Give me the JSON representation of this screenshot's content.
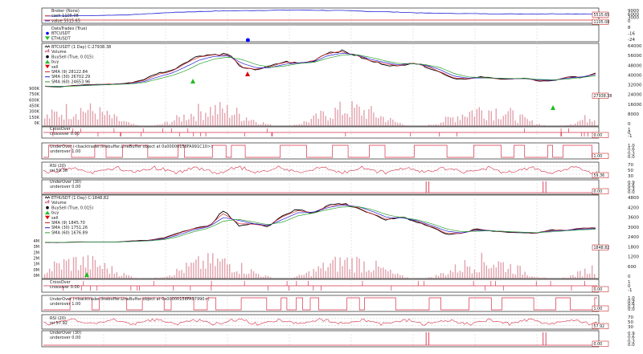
{
  "colors": {
    "price": "#000000",
    "sma_short": "#d62728",
    "sma_mid": "#1f1fd6",
    "sma_long": "#2ca02c",
    "indicator": "#d6304a",
    "volume": "#c9566a",
    "broker_value": "#1f1fd6",
    "broker_cash": "#d62728",
    "trade_dot": "#0000ff",
    "buy": "#22bb22",
    "sell": "#dd0000",
    "grid": "#cccccc"
  },
  "chart_data": [
    {
      "type": "line",
      "panel": "broker",
      "legend": [
        "Broker (None)",
        "cash 1105.08",
        "value 5515.65"
      ],
      "series": [
        {
          "name": "cash 1105.08",
          "values": [
            1105.08,
            1105.08
          ]
        },
        {
          "name": "value 5515.65",
          "values": [
            4300,
            4500,
            5000,
            6400,
            7200,
            7600,
            7800,
            7500,
            6800,
            6000,
            5700,
            5500,
            5600,
            5515.65
          ]
        }
      ],
      "ytick_labels": [
        "9000",
        "6000",
        "3000",
        "0"
      ],
      "ylim": [
        0,
        9000
      ],
      "value_tags": [
        "5515.65",
        "1105.08"
      ],
      "grid": true
    },
    {
      "type": "scatter",
      "panel": "trades",
      "legend": [
        "DataTrades (True)",
        "BTCUSDT",
        "ETHUSDT"
      ],
      "points": [
        {
          "x": 0.37,
          "y": 2
        }
      ],
      "ytick_labels": [
        "8",
        "-16",
        "-24"
      ],
      "grid": true
    },
    {
      "type": "line",
      "panel": "btc-price",
      "legend": [
        "BTCUSDT (1 Day) C:27938.38",
        "Volume",
        "BuySell (True, 0.015)",
        "buy",
        "sell",
        "SMA (9) 28122.84",
        "SMA (30) 26702.29",
        "SMA (60) 24653.96"
      ],
      "series": [
        {
          "name": "BTCUSDT (1 Day) C:27938.38",
          "values": [
            8200,
            7200,
            9400,
            10500,
            11200,
            11700,
            13500,
            18800,
            29000,
            33000,
            47000,
            57000,
            58000,
            59000,
            36000,
            34500,
            40000,
            47000,
            44000,
            48000,
            61500,
            63500,
            57000,
            48000,
            43000,
            39000,
            46000,
            39000,
            30000,
            20000,
            19800,
            23000,
            20000,
            19700,
            20500,
            16500,
            16800,
            23000,
            22000,
            27938.38
          ]
        },
        {
          "name": "SMA (9) 28122.84",
          "values": [
            8300,
            7800,
            9000,
            10300,
            11000,
            11600,
            13000,
            17500,
            27000,
            32000,
            45000,
            55000,
            57000,
            57500,
            38000,
            35000,
            39000,
            46000,
            44500,
            47500,
            60000,
            62000,
            57500,
            49000,
            44000,
            40000,
            45000,
            40000,
            31000,
            21000,
            20000,
            22500,
            20200,
            19800,
            20300,
            17000,
            17200,
            22500,
            22500,
            28122.84
          ]
        },
        {
          "name": "SMA (30) 26702.29",
          "values": [
            8400,
            8000,
            8600,
            9800,
            10700,
            11300,
            12400,
            15500,
            23000,
            29000,
            39000,
            50000,
            55000,
            56000,
            44000,
            37000,
            37500,
            43000,
            45000,
            46500,
            56000,
            60000,
            58000,
            51000,
            46000,
            42000,
            44000,
            41000,
            34000,
            24000,
            21000,
            21500,
            20700,
            20100,
            20200,
            18000,
            17600,
            21000,
            22800,
            26702.29
          ]
        },
        {
          "name": "SMA (60) 24653.96",
          "values": [
            8500,
            8200,
            8400,
            9300,
            10300,
            11000,
            11900,
            14000,
            19500,
            25000,
            33000,
            44000,
            51000,
            54000,
            50000,
            42000,
            38000,
            40000,
            44000,
            45500,
            52000,
            57000,
            58000,
            54000,
            48500,
            44000,
            43500,
            42000,
            37500,
            28000,
            23000,
            21500,
            21000,
            20500,
            20300,
            19000,
            18300,
            19500,
            22000,
            24653.96
          ]
        }
      ],
      "volume_ticks": [
        "900K",
        "750K",
        "600K",
        "450K",
        "300K",
        "150K",
        "0K"
      ],
      "ytick_labels": [
        "64000",
        "56000",
        "48000",
        "40000",
        "32000",
        "24000",
        "16000",
        "8000",
        "0"
      ],
      "ylim": [
        0,
        68000
      ],
      "last_value_tag": "27938.38",
      "grid": true
    },
    {
      "type": "line",
      "panel": "btc-crossover",
      "legend": [
        "CrossOver",
        "crossover 0.00"
      ],
      "ytick_labels": [
        "1",
        "0",
        "-1"
      ],
      "value_tag": "0.00"
    },
    {
      "type": "line",
      "panel": "btc-underover-1",
      "legend": [
        "UnderOver (<backtrader.linebuffer.LineBuffer object at 0x00000158FA991C10>)",
        "underover 1.00"
      ],
      "ytick_labels": [
        "1.0",
        "0.6",
        "0.3",
        "0.0"
      ],
      "value_tag": "1.00"
    },
    {
      "type": "line",
      "panel": "btc-rsi",
      "legend": [
        "RSI (20)",
        "rsi 59.36"
      ],
      "ytick_labels": [
        "70",
        "50",
        "30"
      ],
      "value_tag": "59.36"
    },
    {
      "type": "line",
      "panel": "btc-underover-30",
      "legend": [
        "UnderOver (30)",
        "underover 0.00"
      ],
      "ytick_labels": [
        "0.9",
        "0.6",
        "0.3",
        "0.0"
      ],
      "value_tag": "0.00"
    },
    {
      "type": "line",
      "panel": "eth-price",
      "legend": [
        "ETHUSDT (1 Day) C:1848.82",
        "Volume",
        "BuySell (True, 0.015)",
        "buy",
        "sell",
        "SMA (9) 1845.70",
        "SMA (30) 1751.26",
        "SMA (60) 1676.89"
      ],
      "series": [
        {
          "name": "ETHUSDT (1 Day) C:1848.82",
          "values": [
            180,
            170,
            230,
            240,
            220,
            240,
            380,
            420,
            700,
            1300,
            1800,
            2000,
            3800,
            2100,
            2300,
            2000,
            3300,
            3900,
            3500,
            4400,
            4600,
            4100,
            3300,
            2700,
            3100,
            2500,
            1900,
            1100,
            1200,
            1700,
            1500,
            1350,
            1300,
            1200,
            1600,
            1550,
            1800,
            1848.82
          ]
        },
        {
          "name": "SMA (9) 1845.70",
          "values": [
            190,
            180,
            215,
            235,
            225,
            240,
            360,
            410,
            660,
            1220,
            1750,
            2000,
            3500,
            2300,
            2250,
            2050,
            3150,
            3800,
            3550,
            4300,
            4500,
            4150,
            3400,
            2800,
            3050,
            2550,
            1950,
            1200,
            1200,
            1650,
            1500,
            1370,
            1310,
            1230,
            1550,
            1560,
            1760,
            1845.7
          ]
        },
        {
          "name": "SMA (30) 1751.26",
          "values": [
            200,
            190,
            205,
            225,
            228,
            238,
            320,
            390,
            580,
            1050,
            1600,
            1950,
            3000,
            2700,
            2300,
            2100,
            2800,
            3550,
            3600,
            4100,
            4400,
            4250,
            3700,
            3000,
            2950,
            2650,
            2100,
            1450,
            1250,
            1550,
            1520,
            1400,
            1330,
            1260,
            1450,
            1550,
            1680,
            1751.26
          ]
        },
        {
          "name": "SMA (60) 1676.89",
          "values": [
            210,
            200,
            200,
            215,
            225,
            235,
            290,
            360,
            500,
            850,
            1400,
            1800,
            2600,
            2800,
            2500,
            2200,
            2500,
            3200,
            3500,
            3900,
            4200,
            4250,
            3900,
            3300,
            3000,
            2750,
            2300,
            1700,
            1400,
            1450,
            1500,
            1420,
            1350,
            1290,
            1380,
            1500,
            1600,
            1676.89
          ]
        }
      ],
      "volume_ticks": [
        "4M",
        "3M",
        "2M",
        "2M",
        "1M",
        "0M",
        "0M"
      ],
      "ytick_labels": [
        "4800",
        "4200",
        "3600",
        "3000",
        "2400",
        "1800",
        "1200",
        "600",
        "0"
      ],
      "ylim": [
        0,
        5000
      ],
      "last_value_tag": "1848.82",
      "grid": true
    },
    {
      "type": "line",
      "panel": "eth-crossover",
      "legend": [
        "CrossOver",
        "crossover 0.00"
      ],
      "ytick_labels": [
        "1",
        "0",
        "-1"
      ],
      "value_tag": "0.00"
    },
    {
      "type": "line",
      "panel": "eth-underover-1",
      "legend": [
        "UnderOver (<backtrader.linebuffer.LineBuffer object at 0x00000158FA97990>)",
        "underover 1.00"
      ],
      "ytick_labels": [
        "1.0",
        "0.9",
        "0.6",
        "0.3",
        "0.0"
      ],
      "value_tag": "1.00"
    },
    {
      "type": "line",
      "panel": "eth-rsi",
      "legend": [
        "RSI (20)",
        "rsi 57.92"
      ],
      "ytick_labels": [
        "70",
        "50",
        "30"
      ],
      "value_tag": "57.92"
    },
    {
      "type": "line",
      "panel": "eth-underover-30",
      "legend": [
        "UnderOver (30)",
        "underover 0.00"
      ],
      "ytick_labels": [
        "0.9",
        "0.6",
        "0.3",
        "0.0"
      ],
      "value_tag": "0.00"
    }
  ]
}
